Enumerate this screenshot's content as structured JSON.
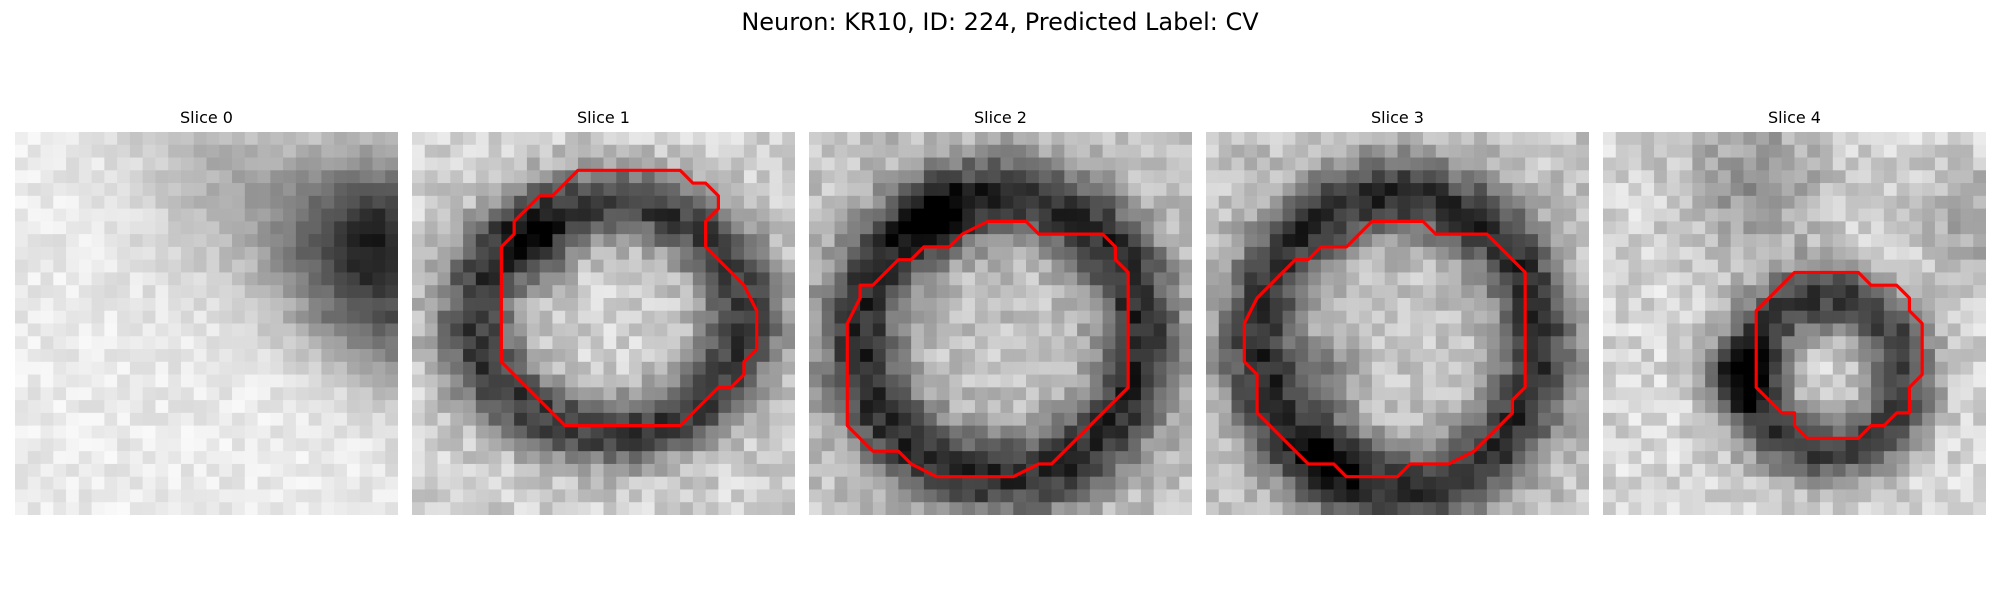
{
  "figure": {
    "title": "Neuron: KR10, ID: 224, Predicted Label: CV"
  },
  "slices": [
    {
      "label": "Slice 0",
      "contour_color": "#ff0000",
      "has_contour": false
    },
    {
      "label": "Slice 1",
      "contour_color": "#ff0000",
      "has_contour": true
    },
    {
      "label": "Slice 2",
      "contour_color": "#ff0000",
      "has_contour": true
    },
    {
      "label": "Slice 3",
      "contour_color": "#ff0000",
      "has_contour": true
    },
    {
      "label": "Slice 4",
      "contour_color": "#ff0000",
      "has_contour": true
    }
  ]
}
